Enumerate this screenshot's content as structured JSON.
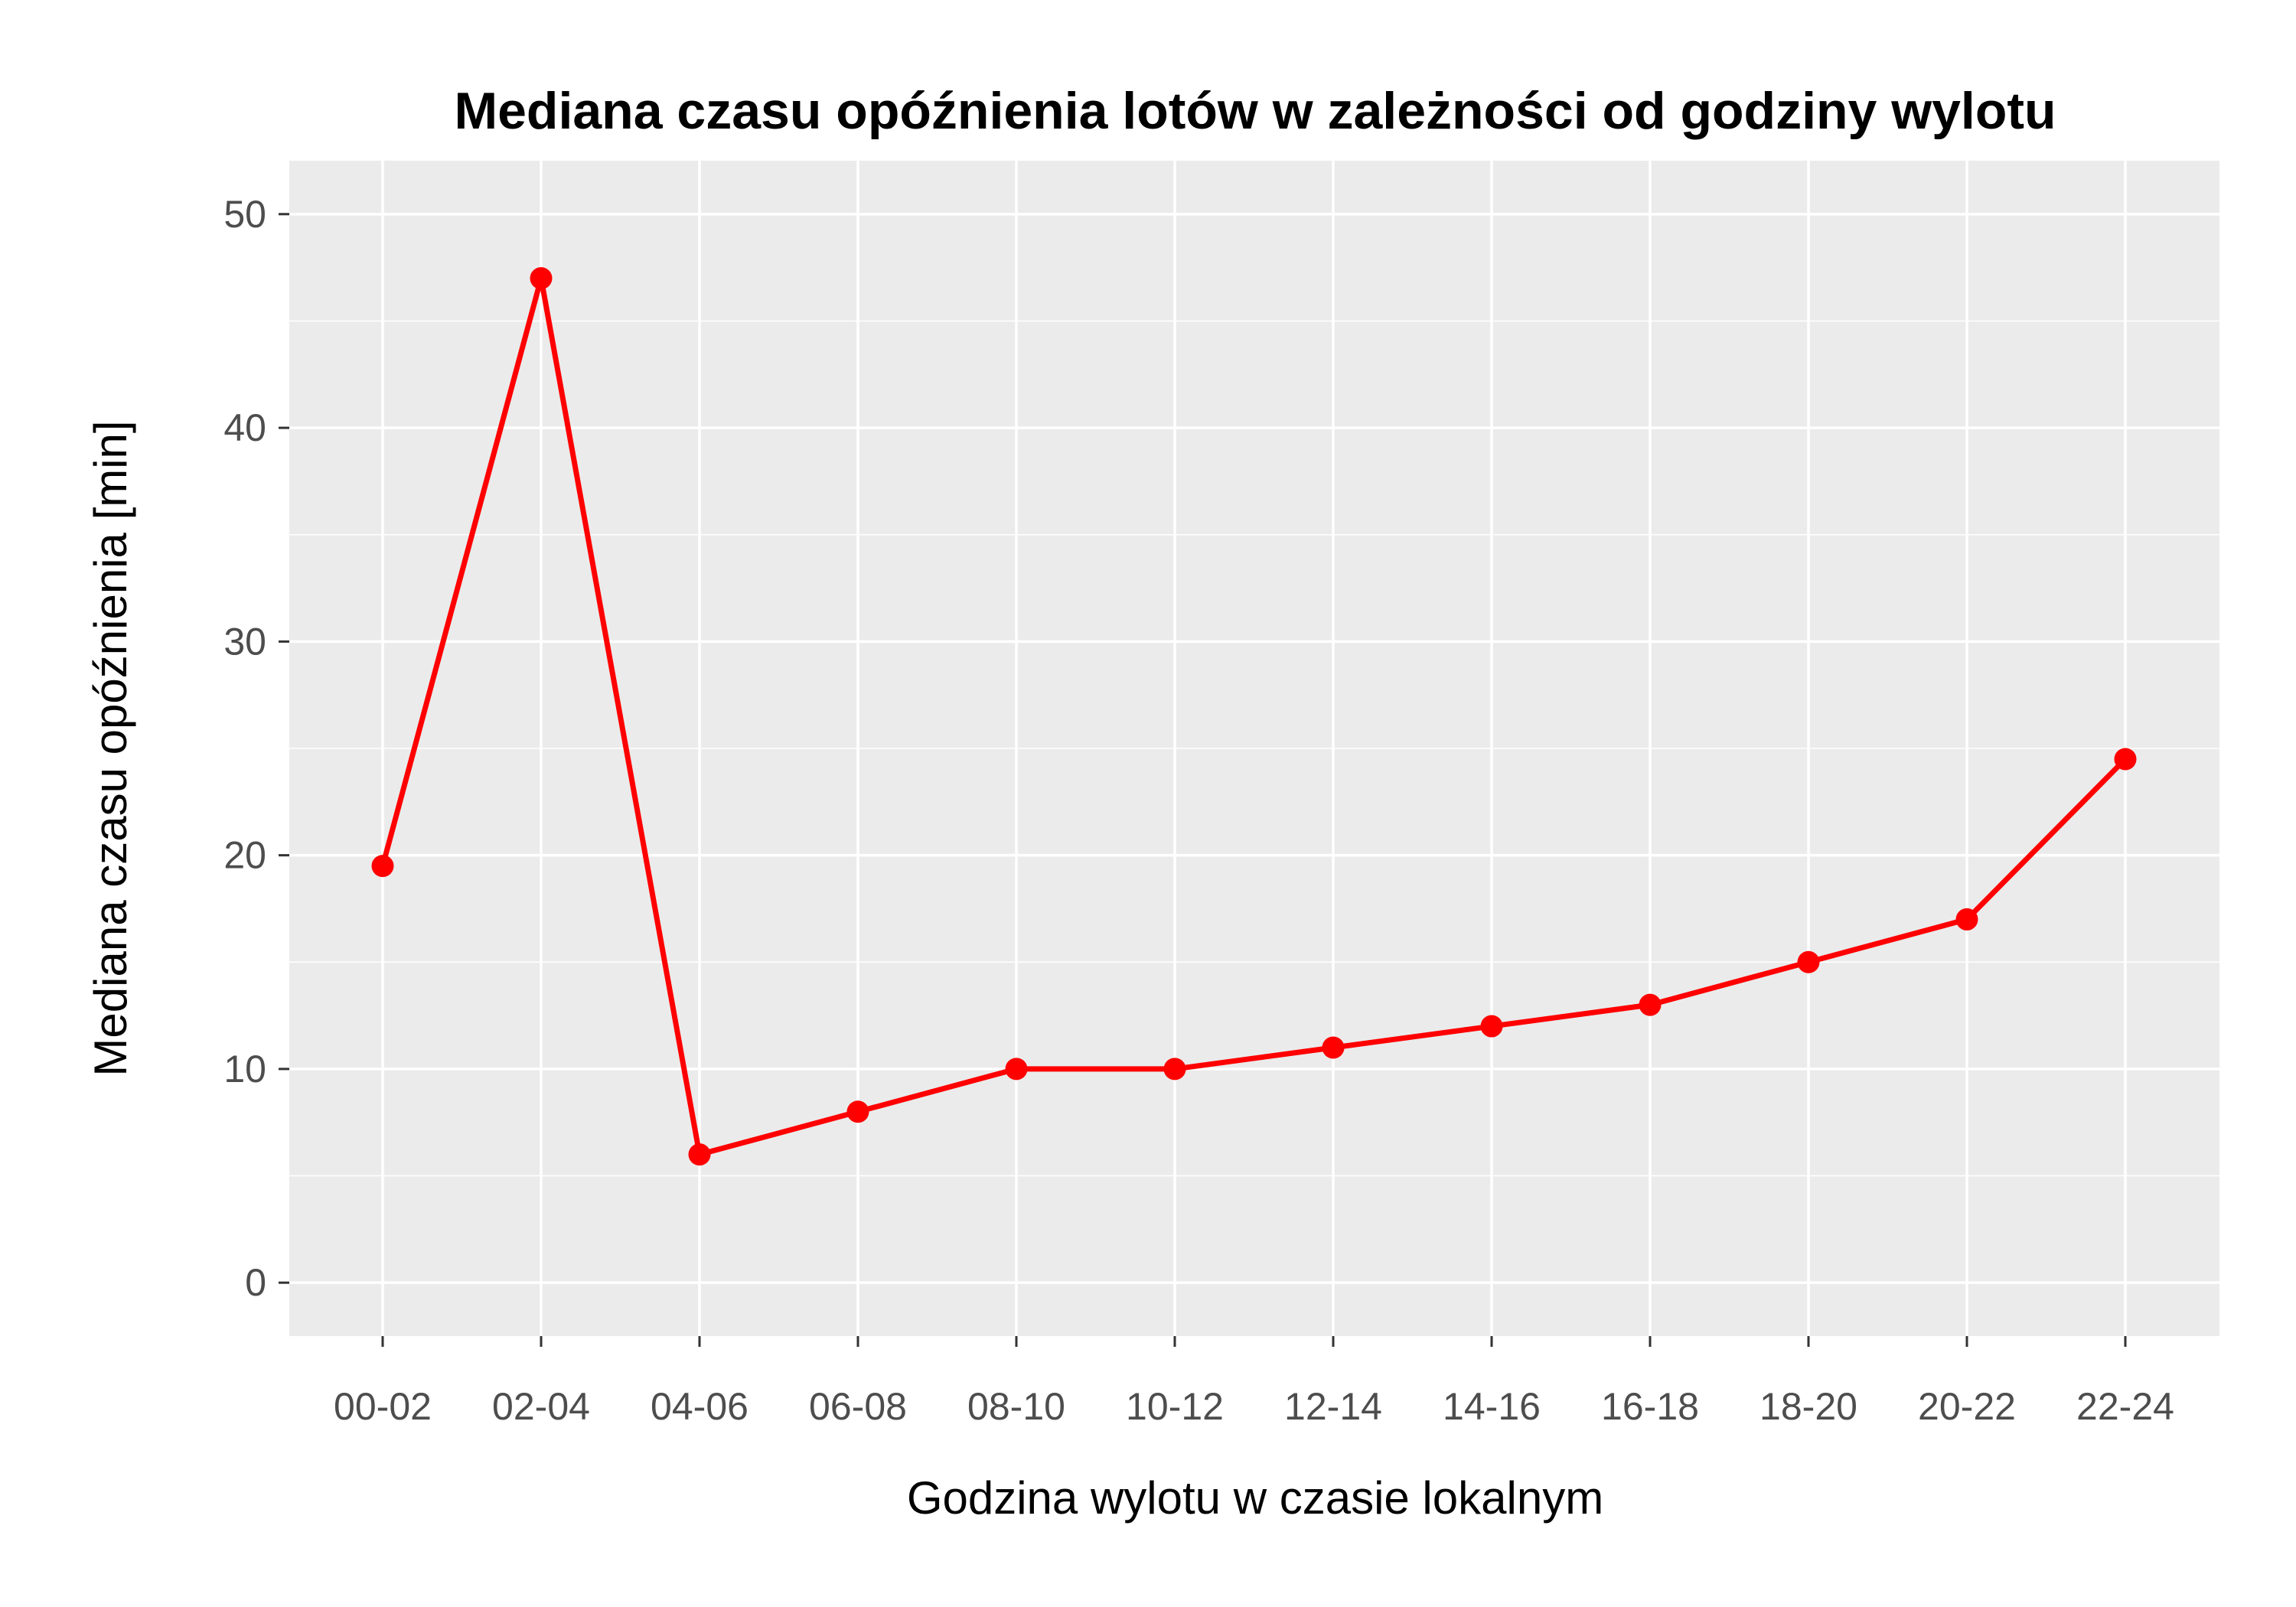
{
  "chart_data": {
    "type": "line",
    "title": "Mediana czasu opóźnienia lotów w zależności od godziny wylotu",
    "xlabel": "Godzina wylotu w czasie lokalnym",
    "ylabel": "Mediana czasu opóźnienia [min]",
    "categories": [
      "00-02",
      "02-04",
      "04-06",
      "06-08",
      "08-10",
      "10-12",
      "12-14",
      "14-16",
      "16-18",
      "18-20",
      "20-22",
      "22-24"
    ],
    "series": [
      {
        "values": [
          19.5,
          47,
          6,
          8,
          10,
          10,
          11,
          12,
          13,
          15,
          17,
          24.5
        ]
      }
    ],
    "ylim": [
      -2.5,
      52.5
    ],
    "yticks": [
      0,
      10,
      20,
      30,
      40,
      50
    ],
    "grid": true,
    "colors": {
      "line": "#ff0000",
      "panel": "#ebebeb",
      "grid": "#ffffff"
    }
  }
}
